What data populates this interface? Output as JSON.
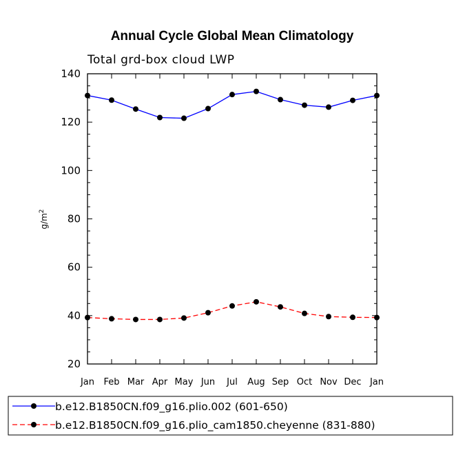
{
  "chart_data": {
    "type": "line",
    "title": "Annual Cycle Global Mean Climatology",
    "subtitle": "Total grd-box cloud LWP",
    "xlabel": "",
    "ylabel": "g/m",
    "ylabel_superscript": "2",
    "categories": [
      "Jan",
      "Feb",
      "Mar",
      "Apr",
      "May",
      "Jun",
      "Jul",
      "Aug",
      "Sep",
      "Oct",
      "Nov",
      "Dec",
      "Jan"
    ],
    "ylim": [
      20,
      140
    ],
    "yticks": [
      20,
      40,
      60,
      80,
      100,
      120,
      140
    ],
    "grid": false,
    "legend_position": "bottom",
    "series": [
      {
        "name": "b.e12.B1850CN.f09_g16.plio.002 (601-650)",
        "values": [
          131.0,
          129.1,
          125.4,
          121.9,
          121.6,
          125.6,
          131.4,
          132.7,
          129.3,
          127.0,
          126.2,
          129.0,
          131.0
        ],
        "color": "#0000ff",
        "dash": "solid",
        "marker": "circle"
      },
      {
        "name": "b.e12.B1850CN.f09_g16.plio_cam1850.cheyenne (831-880)",
        "values": [
          39.2,
          38.7,
          38.4,
          38.4,
          39.0,
          41.2,
          44.0,
          45.7,
          43.6,
          40.9,
          39.6,
          39.3,
          39.2
        ],
        "color": "#ff0000",
        "dash": "dashed",
        "marker": "circle"
      }
    ]
  }
}
